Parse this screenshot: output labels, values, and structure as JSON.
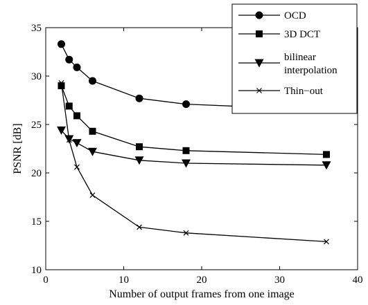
{
  "chart_data": {
    "type": "line",
    "xlabel": "Number of output frames from one image",
    "ylabel": "PSNR [dB]",
    "xlim": [
      0,
      40
    ],
    "ylim": [
      10,
      35
    ],
    "x_ticks": [
      "0",
      "10",
      "20",
      "30",
      "40"
    ],
    "y_ticks": [
      "10",
      "15",
      "20",
      "25",
      "30",
      "35"
    ],
    "grid": false,
    "legend_position": "top-right",
    "x": [
      2,
      3,
      4,
      6,
      12,
      18,
      36
    ],
    "series": [
      {
        "name": "OCD",
        "marker": "circle",
        "values": [
          33.3,
          31.7,
          30.9,
          29.5,
          27.7,
          27.1,
          26.5
        ]
      },
      {
        "name": "3D DCT",
        "marker": "square",
        "values": [
          29.0,
          26.9,
          25.9,
          24.3,
          22.7,
          22.3,
          21.9
        ]
      },
      {
        "name_lines": [
          "bilinear",
          "interpolation"
        ],
        "marker": "triangle-down",
        "values": [
          24.4,
          23.5,
          23.1,
          22.2,
          21.3,
          21.0,
          20.8
        ]
      },
      {
        "name": "Thin−out",
        "marker": "x",
        "values": [
          29.3,
          23.4,
          20.6,
          17.7,
          14.4,
          13.8,
          12.9
        ]
      }
    ]
  }
}
